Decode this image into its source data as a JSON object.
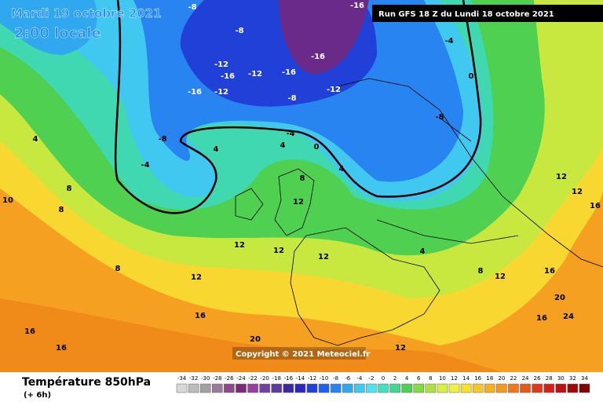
{
  "header": {
    "date": "Mardi 19 octobre 2021",
    "local_time": "2:00 locale",
    "run": "Run GFS 18 Z du Lundi 18 octobre 2021"
  },
  "map": {
    "copyright": "Copyright © 2021 Meteociel.fr",
    "contour_labels": [
      "-8",
      "-16",
      "-16",
      "-16",
      "-8",
      "-12",
      "-16",
      "-12",
      "-16",
      "-12",
      "-8",
      "-12",
      "-8",
      "-4",
      "0",
      "-8",
      "-4",
      "4",
      "4",
      "-4",
      "0",
      "4",
      "8",
      "12",
      "8",
      "10",
      "8",
      "12",
      "12",
      "12",
      "8",
      "12",
      "16",
      "16",
      "16",
      "20",
      "12",
      "12",
      "16",
      "20",
      "16",
      "24",
      "12",
      "12",
      "16",
      "4",
      "4",
      "8"
    ]
  },
  "footer": {
    "variable": "Température 850hPa",
    "lead": "(+ 6h)"
  },
  "legend": {
    "labels": [
      "-34",
      "-32",
      "-30",
      "-28",
      "-26",
      "-24",
      "-22",
      "-20",
      "-18",
      "-16",
      "-14",
      "-12",
      "-10",
      "-8",
      "-6",
      "-4",
      "-2",
      "0",
      "2",
      "4",
      "6",
      "8",
      "10",
      "12",
      "14",
      "16",
      "18",
      "20",
      "22",
      "24",
      "26",
      "28",
      "30",
      "32",
      "34"
    ],
    "colors": [
      "#d8d8d8",
      "#bcbcbc",
      "#a0a0a0",
      "#9a7a9a",
      "#8c4a8c",
      "#7a2a7a",
      "#9a3ca0",
      "#7040a0",
      "#5a3c9a",
      "#3c28a0",
      "#2828c0",
      "#2040d8",
      "#2060f0",
      "#2884f0",
      "#30a8f0",
      "#40c8f0",
      "#50e0f0",
      "#40e0c0",
      "#40d890",
      "#50d050",
      "#80dc40",
      "#b0e040",
      "#d8f040",
      "#f0f040",
      "#f8e030",
      "#f8c828",
      "#f8b020",
      "#f89818",
      "#f07818",
      "#e85818",
      "#e03818",
      "#d82018",
      "#c01010",
      "#a00808",
      "#800000"
    ]
  }
}
